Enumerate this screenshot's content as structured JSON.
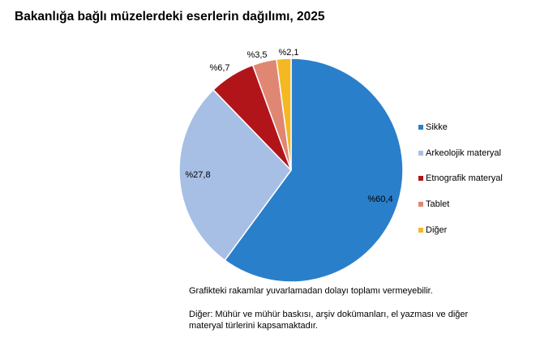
{
  "chart_data": {
    "type": "pie",
    "title": "Bakanlığa bağlı müzelerdeki eserlerin dağılımı, 2025",
    "slices": [
      {
        "name": "Sikke",
        "value": 60.4,
        "label": "%60,4",
        "color": "#2a7fca"
      },
      {
        "name": "Arkeolojik materyal",
        "value": 27.8,
        "label": "%27,8",
        "color": "#a7bfe5"
      },
      {
        "name": "Etnografik materyal",
        "value": 6.7,
        "label": "%6,7",
        "color": "#b21519"
      },
      {
        "name": "Tablet",
        "value": 3.5,
        "label": "%3,5",
        "color": "#e08774"
      },
      {
        "name": "Diğer",
        "value": 2.1,
        "label": "%2,1",
        "color": "#f4b822"
      }
    ],
    "legend_position": "right"
  },
  "notes": {
    "line1": "Grafikteki rakamlar yuvarlamadan dolayı toplamı vermeyebilir.",
    "line2a": "Diğer: Mühür ve mühür baskısı, arşiv dokümanları, el yazması ve diğer",
    "line2b": "materyal türlerini kapsamaktadır."
  }
}
